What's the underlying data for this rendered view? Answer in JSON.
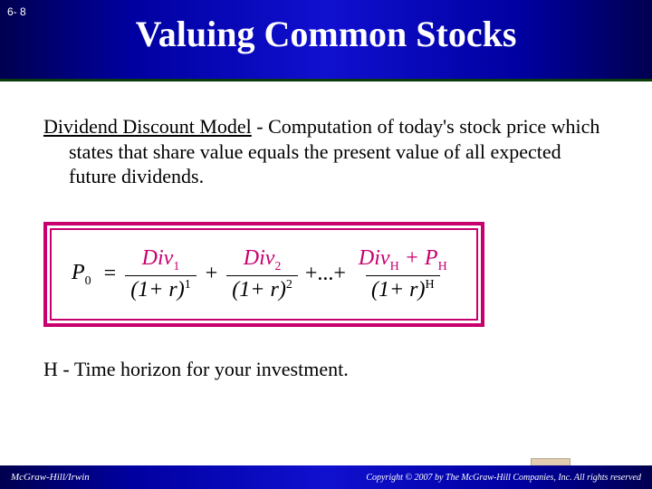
{
  "header": {
    "page_num": "6- 8",
    "title": "Valuing Common Stocks"
  },
  "body": {
    "term": "Dividend Discount Model",
    "definition_rest": " - Computation of today's stock price which states that share value equals the present value of all expected future dividends.",
    "formula": {
      "lhs_var": "P",
      "lhs_sub": "0",
      "t1_num_var": "Div",
      "t1_num_sub": "1",
      "t1_den_base": "(1+ r)",
      "t1_den_sup": "1",
      "t2_num_var": "Div",
      "t2_num_sub": "2",
      "t2_den_base": "(1+ r)",
      "t2_den_sup": "2",
      "dots": "+...+",
      "tH_num_a": "Div",
      "tH_num_a_sub": "H",
      "tH_plus": " + ",
      "tH_num_b": "P",
      "tH_num_b_sub": "H",
      "tH_den_base": "(1+ r)",
      "tH_den_sup": "H"
    },
    "h_line": "H - Time horizon for your investment."
  },
  "footer": {
    "left": "McGraw-Hill/Irwin",
    "right": "Copyright © 2007 by The McGraw-Hill Companies, Inc. All rights reserved"
  },
  "colors": {
    "accent": "#c8006e",
    "header_grad_mid": "#1010d0"
  }
}
